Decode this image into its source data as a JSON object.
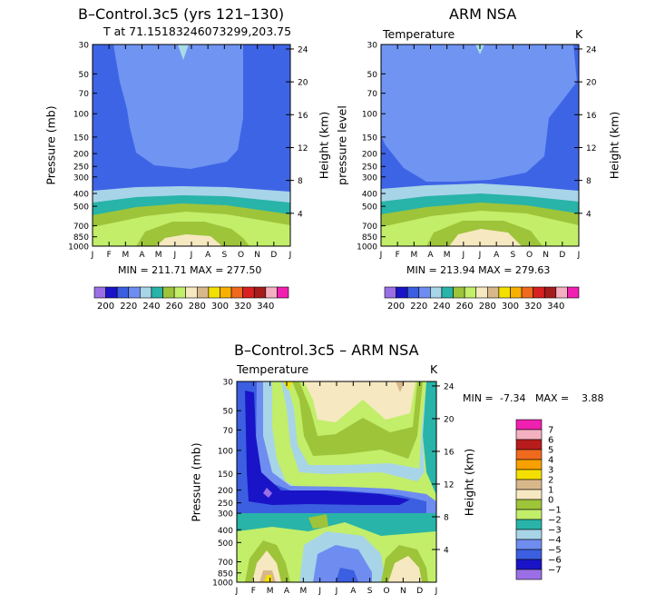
{
  "panel_a": {
    "title": "B–Control.3c5 (yrs 121–130)",
    "subtitle": "T at 71.15183246073299,203.75",
    "ylabel": "Pressure (mb)",
    "y2label": "Height (km)",
    "minmax": "MIN = 211.71  MAX = 277.50"
  },
  "panel_b": {
    "title": "ARM NSA",
    "subtitle_left": "Temperature",
    "subtitle_right": "K",
    "ylabel": "pressure level",
    "y2label": "Height (km)",
    "minmax": "MIN = 213.94  MAX = 279.63"
  },
  "panel_c": {
    "title": "B–Control.3c5 – ARM NSA",
    "subtitle_left": "Temperature",
    "subtitle_right": "K",
    "ylabel": "Pressure (mb)",
    "y2label": "Height (km)",
    "min_label": "MIN =",
    "min_value": "-7.34",
    "max_label": "MAX =",
    "max_value": "3.88"
  },
  "colorbar_abs": {
    "colors": [
      "#9a6fe6",
      "#1a14c8",
      "#3b5fe0",
      "#6f8df0",
      "#a8d4e8",
      "#28b4a8",
      "#9ec43a",
      "#c2ee6a",
      "#f6e8c0",
      "#d8b88a",
      "#f4e000",
      "#f8b000",
      "#f06a1e",
      "#d82020",
      "#a41c1c",
      "#f4b0c0",
      "#f020b0"
    ],
    "labels": [
      "200",
      "220",
      "240",
      "260",
      "280",
      "300",
      "320",
      "340"
    ]
  },
  "colorbar_diff": {
    "colors_top_to_bottom": [
      "#f020b0",
      "#f4b0c0",
      "#b81c1c",
      "#f06a1e",
      "#f8a000",
      "#f4e000",
      "#d8b88a",
      "#f6e8c0",
      "#9ec43a",
      "#c2ee6a",
      "#28b4a8",
      "#a8d4e8",
      "#6f8df0",
      "#3b5fe0",
      "#1a14c8",
      "#9a6fe6"
    ],
    "labels": [
      "7",
      "6",
      "5",
      "4",
      "3",
      "2",
      "1",
      "0",
      "−1",
      "−2",
      "−3",
      "−4",
      "−5",
      "−6",
      "−7"
    ]
  },
  "chart_data": [
    {
      "type": "heatmap",
      "name": "model-temperature",
      "title": "B–Control.3c5 (yrs 121–130)",
      "subtitle": "T at 71.15183246073299,203.75",
      "xlabel": "",
      "ylabel": "Pressure (mb)",
      "y2label": "Height (km)",
      "x_ticks": [
        "J",
        "F",
        "M",
        "A",
        "M",
        "J",
        "J",
        "A",
        "S",
        "O",
        "N",
        "D",
        "J"
      ],
      "y_ticks": [
        30,
        50,
        70,
        100,
        150,
        200,
        250,
        300,
        400,
        500,
        700,
        850,
        1000
      ],
      "y2_ticks": [
        24,
        20,
        16,
        12,
        8,
        4
      ],
      "units": "K",
      "levels": [
        200,
        210,
        220,
        230,
        240,
        250,
        260,
        270,
        280,
        290,
        300,
        310,
        320,
        330,
        340
      ],
      "min": 211.71,
      "max": 277.5
    },
    {
      "type": "heatmap",
      "name": "obs-temperature",
      "title": "ARM NSA",
      "subtitle": "Temperature",
      "ylabel": "pressure level",
      "y2label": "Height (km)",
      "x_ticks": [
        "J",
        "F",
        "M",
        "A",
        "M",
        "J",
        "J",
        "A",
        "S",
        "O",
        "N",
        "D",
        "J"
      ],
      "y_ticks": [
        30,
        50,
        70,
        100,
        150,
        200,
        250,
        300,
        400,
        500,
        700,
        850,
        1000
      ],
      "y2_ticks": [
        24,
        20,
        16,
        12,
        8,
        4
      ],
      "units": "K",
      "min": 213.94,
      "max": 279.63
    },
    {
      "type": "heatmap",
      "name": "difference",
      "title": "B–Control.3c5 – ARM NSA",
      "subtitle": "Temperature",
      "ylabel": "Pressure (mb)",
      "y2label": "Height (km)",
      "x_ticks": [
        "J",
        "F",
        "M",
        "A",
        "M",
        "J",
        "J",
        "A",
        "S",
        "O",
        "N",
        "D",
        "J"
      ],
      "y_ticks": [
        30,
        50,
        70,
        100,
        150,
        200,
        250,
        300,
        400,
        500,
        700,
        850,
        1000
      ],
      "y2_ticks": [
        24,
        20,
        16,
        12,
        8,
        4
      ],
      "units": "K",
      "levels": [
        -7,
        -6,
        -5,
        -4,
        -3,
        -2,
        -1,
        0,
        1,
        2,
        3,
        4,
        5,
        6,
        7
      ],
      "min": -7.34,
      "max": 3.88
    }
  ]
}
